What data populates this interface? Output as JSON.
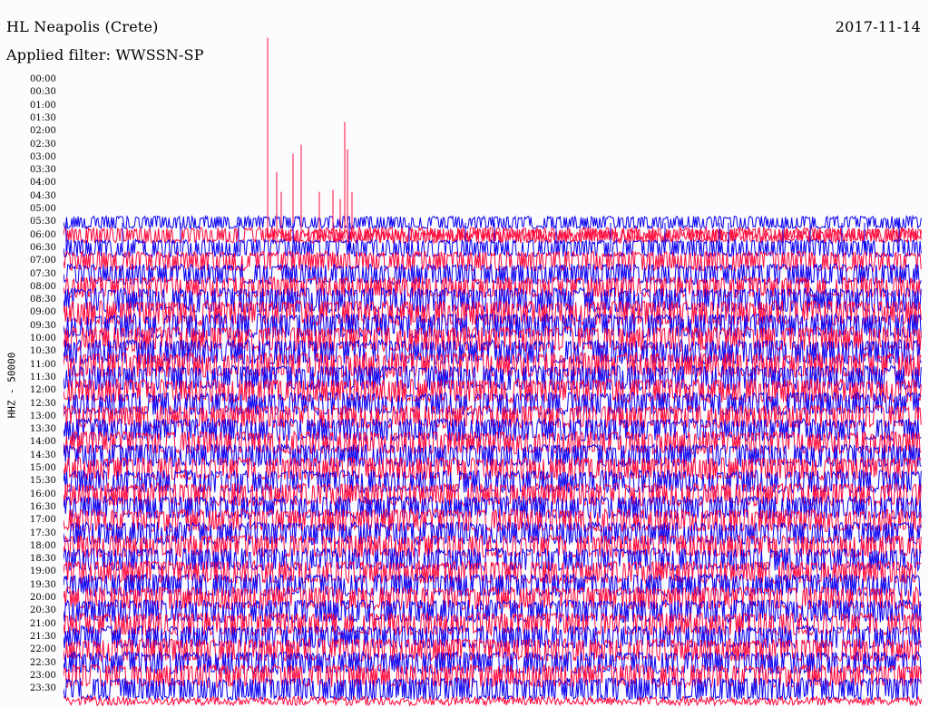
{
  "header": {
    "station": "HL Neapolis (Crete)",
    "filter": "Applied filter: WWSSN-SP",
    "date": "2017-11-14",
    "channel": "HHZ - 50000"
  },
  "colors": {
    "red": "#ff0a3c",
    "blue": "#0a00f0",
    "background": "#fcfcfe"
  },
  "chart_data": {
    "type": "helicorder",
    "time_labels": [
      "00:00",
      "00:30",
      "01:00",
      "01:30",
      "02:00",
      "02:30",
      "03:00",
      "03:30",
      "04:00",
      "04:30",
      "05:00",
      "05:30",
      "06:00",
      "06:30",
      "07:00",
      "07:30",
      "08:00",
      "08:30",
      "09:00",
      "09:30",
      "10:00",
      "10:30",
      "11:00",
      "11:30",
      "12:00",
      "12:30",
      "13:00",
      "13:30",
      "14:00",
      "14:30",
      "15:00",
      "15:30",
      "16:00",
      "16:30",
      "17:00",
      "17:30",
      "18:00",
      "18:30",
      "19:00",
      "19:30",
      "20:00",
      "20:30",
      "21:00",
      "21:30",
      "22:00",
      "22:30",
      "23:00",
      "23:30"
    ],
    "row_minutes": 30,
    "data_start": "05:30",
    "trace_color_order": [
      "blue",
      "red"
    ],
    "activity": [
      0,
      0,
      0,
      0,
      0,
      0,
      0,
      0,
      0,
      0,
      0,
      0.35,
      0.5,
      0.6,
      0.7,
      0.75,
      0.75,
      0.95,
      0.95,
      0.95,
      0.95,
      0.95,
      0.95,
      0.95,
      0.9,
      0.85,
      0.85,
      0.85,
      0.85,
      0.85,
      0.85,
      0.85,
      0.85,
      0.85,
      0.85,
      0.85,
      0.85,
      0.85,
      0.85,
      0.85,
      0.85,
      0.85,
      0.85,
      0.85,
      0.85,
      0.85,
      0.85,
      0.85
    ]
  }
}
